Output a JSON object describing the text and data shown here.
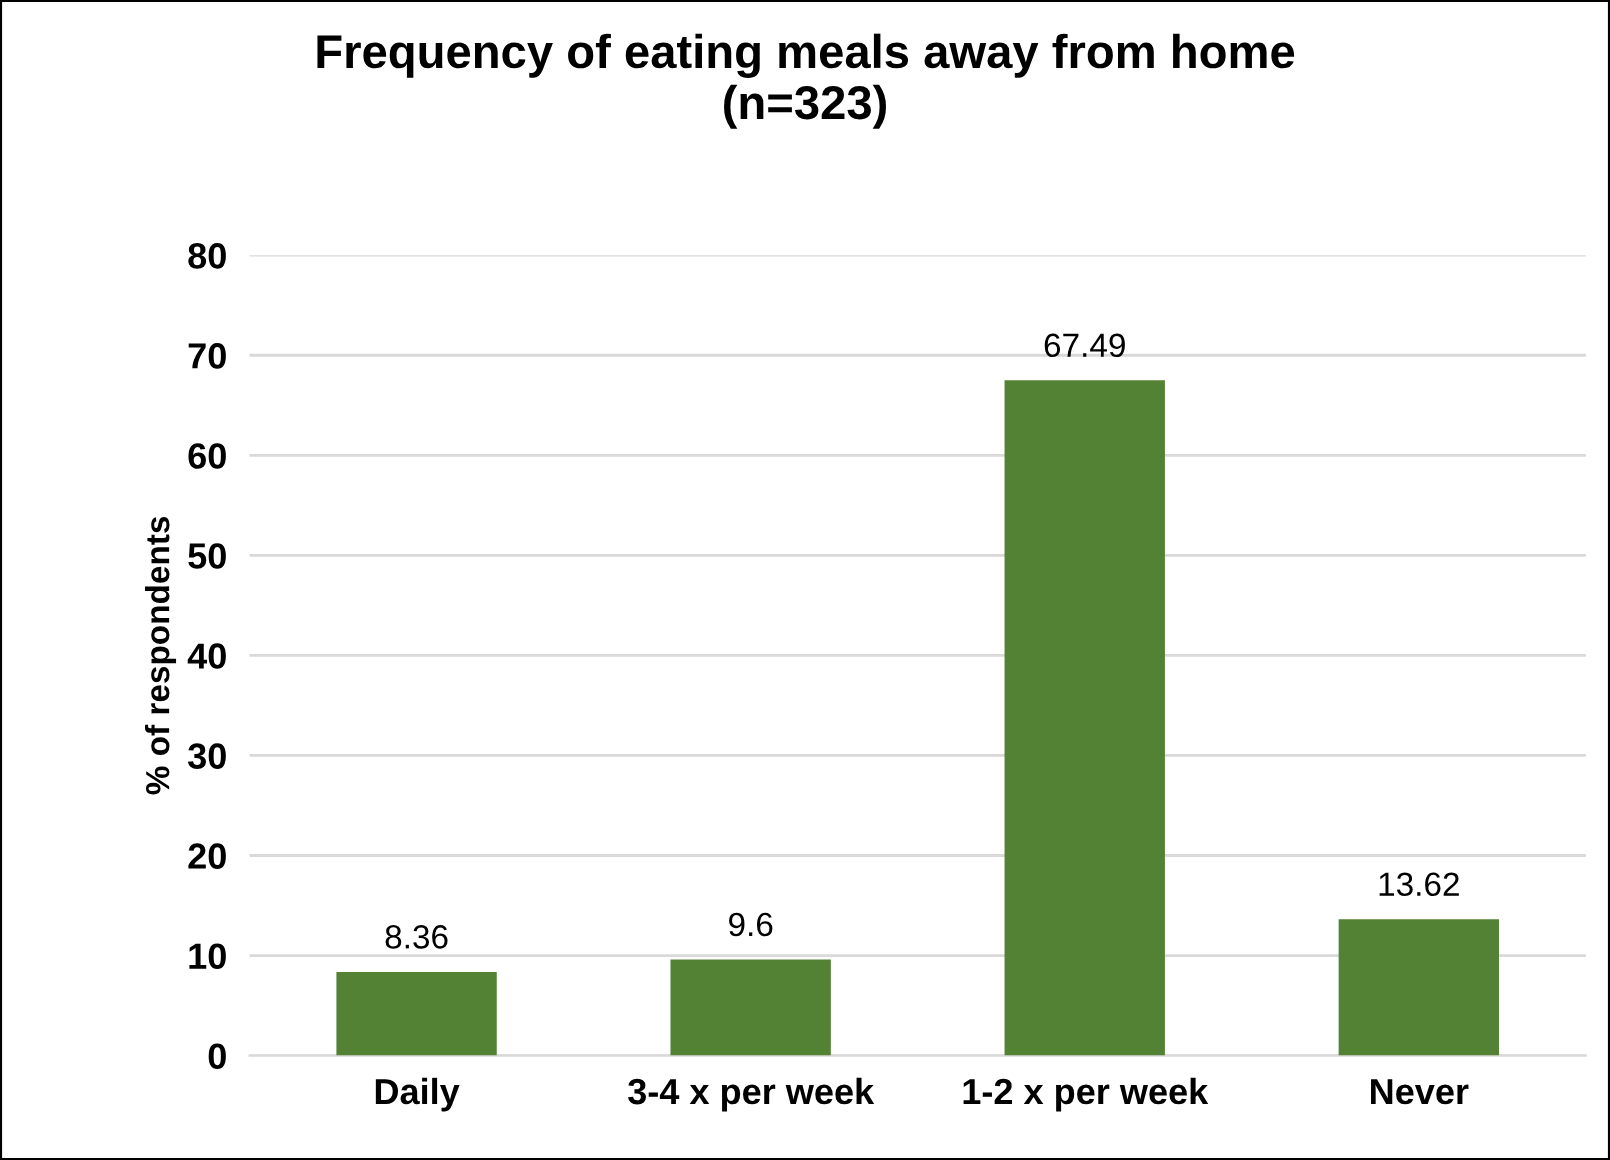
{
  "chart_data": {
    "type": "bar",
    "title": "Frequency of eating meals away from home\n(n=323)",
    "ylabel": "% of respondents",
    "categories": [
      "Daily",
      "3-4 x per week",
      "1-2 x per week",
      "Never"
    ],
    "values": [
      8.36,
      9.6,
      67.49,
      13.62
    ],
    "color": "#548235",
    "ylim": [
      0,
      80
    ],
    "yticks": [
      0,
      10,
      20,
      30,
      40,
      50,
      60,
      70,
      80
    ],
    "grid": "y",
    "data_labels": true,
    "legend": false
  }
}
